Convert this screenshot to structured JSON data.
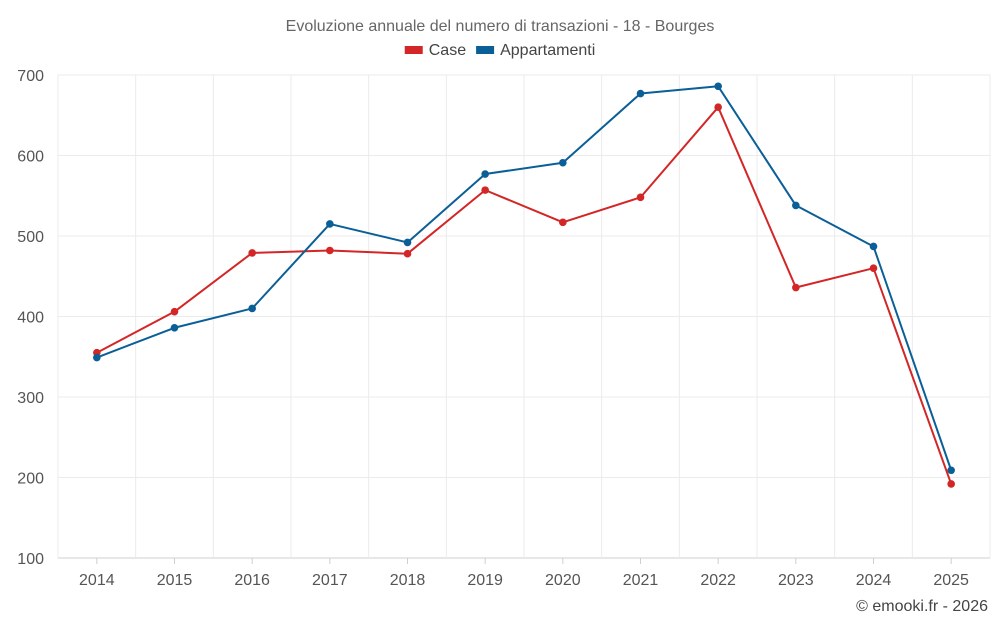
{
  "chart_data": {
    "type": "line",
    "title": "Evoluzione annuale del numero di transazioni - 18 - Bourges",
    "categories": [
      "2014",
      "2015",
      "2016",
      "2017",
      "2018",
      "2019",
      "2020",
      "2021",
      "2022",
      "2023",
      "2024",
      "2025"
    ],
    "series": [
      {
        "name": "Case",
        "color": "#d32626",
        "values": [
          355,
          406,
          479,
          482,
          478,
          557,
          517,
          548,
          660,
          436,
          460,
          192
        ]
      },
      {
        "name": "Appartamenti",
        "color": "#0a5f97",
        "values": [
          349,
          386,
          410,
          515,
          492,
          577,
          591,
          677,
          686,
          538,
          487,
          209
        ]
      }
    ],
    "ylim": [
      100,
      700
    ],
    "yticks": [
      100,
      200,
      300,
      400,
      500,
      600,
      700
    ],
    "xlabel": "",
    "ylabel": "",
    "legend_position": "top-center",
    "grid": true
  },
  "credit": "© emooki.fr - 2026"
}
